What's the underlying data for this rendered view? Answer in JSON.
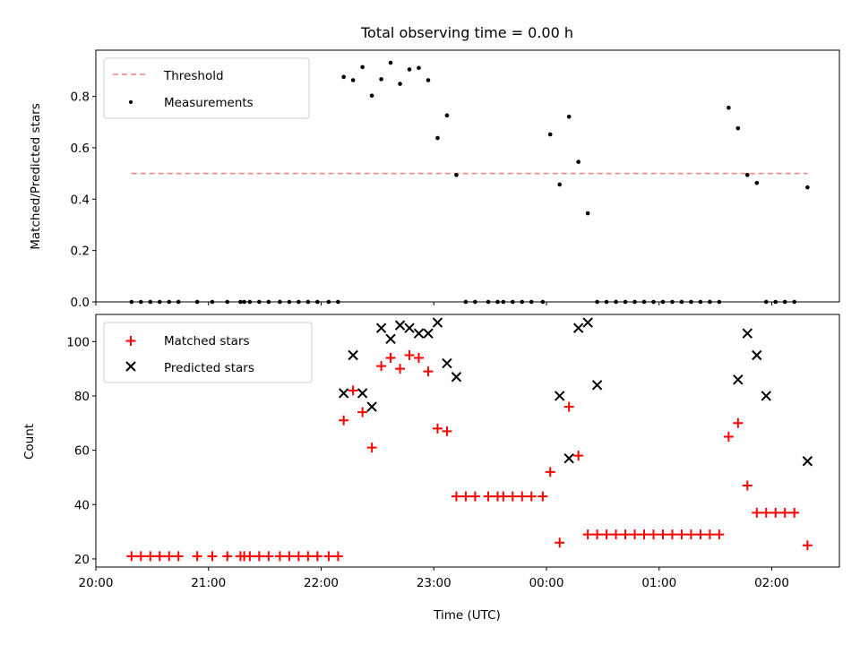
{
  "chart_data": [
    {
      "type": "scatter",
      "title": "Total observing time = 0.00 h",
      "ylabel": "Matched/Predicted stars",
      "xlabel": "",
      "xlim": [
        "20:00",
        "02:36"
      ],
      "ylim": [
        0,
        0.98
      ],
      "yticks": [
        0.0,
        0.2,
        0.4,
        0.6,
        0.8
      ],
      "ytick_labels": [
        "0.0",
        "0.2",
        "0.4",
        "0.6",
        "0.8"
      ],
      "legend_position": "upper-left",
      "threshold": {
        "name": "Threshold",
        "color": "#ff7f7f",
        "value": 0.5,
        "x_start": "20:19",
        "x_end": "02:19"
      },
      "series": [
        {
          "name": "Measurements",
          "color": "#000000",
          "x": [
            "20:19",
            "20:24",
            "20:29",
            "20:34",
            "20:39",
            "20:44",
            "20:54",
            "21:02",
            "21:10",
            "21:17",
            "21:19",
            "21:22",
            "21:27",
            "21:32",
            "21:38",
            "21:43",
            "21:48",
            "21:53",
            "21:58",
            "22:04",
            "22:09",
            "22:12",
            "22:17",
            "22:22",
            "22:27",
            "22:32",
            "22:37",
            "22:42",
            "22:47",
            "22:52",
            "22:57",
            "23:02",
            "23:07",
            "23:12",
            "23:17",
            "23:22",
            "23:29",
            "23:34",
            "23:37",
            "23:42",
            "23:47",
            "23:52",
            "23:58",
            "00:02",
            "00:07",
            "00:12",
            "00:17",
            "00:22",
            "00:27",
            "00:32",
            "00:37",
            "00:42",
            "00:47",
            "00:52",
            "00:57",
            "01:02",
            "01:07",
            "01:12",
            "01:17",
            "01:22",
            "01:27",
            "01:32",
            "01:37",
            "01:42",
            "01:47",
            "01:52",
            "01:57",
            "02:02",
            "02:07",
            "02:12",
            "02:19"
          ],
          "y": [
            0,
            0,
            0,
            0,
            0,
            0,
            0,
            0,
            0,
            0,
            0,
            0,
            0,
            0,
            0,
            0,
            0,
            0,
            0,
            0,
            0,
            0.876,
            0.863,
            0.914,
            0.803,
            0.867,
            0.931,
            0.849,
            0.905,
            0.911,
            0.863,
            0.638,
            0.726,
            0.494,
            0,
            0,
            0,
            0,
            0,
            0,
            0,
            0,
            0,
            0.652,
            0.457,
            0.721,
            0.545,
            0.345,
            0,
            0,
            0,
            0,
            0,
            0,
            0,
            0,
            0,
            0,
            0,
            0,
            0,
            0,
            0.756,
            0.676,
            0.494,
            0.463,
            0,
            0,
            0,
            0,
            0.446
          ]
        }
      ]
    },
    {
      "type": "scatter",
      "xlabel": "Time (UTC)",
      "ylabel": "Count",
      "xlim": [
        "20:00",
        "02:36"
      ],
      "ylim": [
        17,
        110
      ],
      "xticks": [
        "20:00",
        "21:00",
        "22:00",
        "23:00",
        "00:00",
        "01:00",
        "02:00"
      ],
      "yticks": [
        20,
        40,
        60,
        80,
        100
      ],
      "legend_position": "upper-left",
      "series": [
        {
          "name": "Matched stars",
          "marker": "+",
          "color": "#ff0000",
          "x": [
            "20:19",
            "20:24",
            "20:29",
            "20:34",
            "20:39",
            "20:44",
            "20:54",
            "21:02",
            "21:10",
            "21:17",
            "21:19",
            "21:22",
            "21:27",
            "21:32",
            "21:38",
            "21:43",
            "21:48",
            "21:53",
            "21:58",
            "22:04",
            "22:09",
            "22:12",
            "22:17",
            "22:22",
            "22:27",
            "22:32",
            "22:37",
            "22:42",
            "22:47",
            "22:52",
            "22:57",
            "23:02",
            "23:07",
            "23:12",
            "23:17",
            "23:22",
            "23:29",
            "23:34",
            "23:37",
            "23:42",
            "23:47",
            "23:52",
            "23:58",
            "00:02",
            "00:07",
            "00:12",
            "00:17",
            "00:22",
            "00:27",
            "00:32",
            "00:37",
            "00:42",
            "00:47",
            "00:52",
            "00:57",
            "01:02",
            "01:07",
            "01:12",
            "01:17",
            "01:22",
            "01:27",
            "01:32",
            "01:37",
            "01:42",
            "01:47",
            "01:52",
            "01:57",
            "02:02",
            "02:07",
            "02:12",
            "02:19"
          ],
          "y": [
            21,
            21,
            21,
            21,
            21,
            21,
            21,
            21,
            21,
            21,
            21,
            21,
            21,
            21,
            21,
            21,
            21,
            21,
            21,
            21,
            21,
            71,
            82,
            74,
            61,
            91,
            94,
            90,
            95,
            94,
            89,
            68,
            67,
            43,
            43,
            43,
            43,
            43,
            43,
            43,
            43,
            43,
            43,
            52,
            26,
            76,
            58,
            29,
            29,
            29,
            29,
            29,
            29,
            29,
            29,
            29,
            29,
            29,
            29,
            29,
            29,
            29,
            65,
            70,
            47,
            37,
            37,
            37,
            37,
            37,
            25
          ]
        },
        {
          "name": "Predicted stars",
          "marker": "x",
          "color": "#000000",
          "x": [
            "22:12",
            "22:17",
            "22:22",
            "22:27",
            "22:32",
            "22:37",
            "22:42",
            "22:47",
            "22:52",
            "22:57",
            "23:02",
            "23:07",
            "23:12",
            "00:07",
            "00:12",
            "00:17",
            "00:22",
            "00:27",
            "01:42",
            "01:47",
            "01:52",
            "01:57",
            "02:19"
          ],
          "y": [
            81,
            95,
            81,
            76,
            105,
            101,
            106,
            105,
            103,
            103,
            107,
            92,
            87,
            80,
            57,
            105,
            107,
            84,
            86,
            103,
            95,
            80,
            56
          ]
        }
      ]
    }
  ]
}
